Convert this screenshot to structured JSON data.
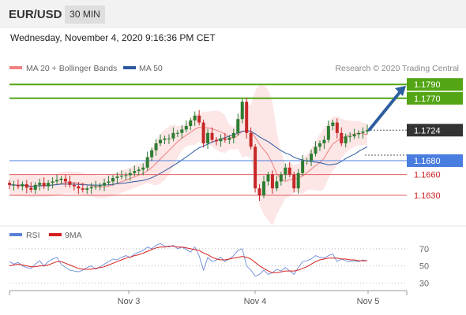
{
  "header": {
    "symbol": "EUR/USD",
    "timeframe": "30 MIN"
  },
  "timestamp": "Wednesday, November 4, 2020 9:16:36 PM CET",
  "copyright": "Research © 2020 Trading Central",
  "colors": {
    "resistance": "#53a515",
    "support_strong": "#4a7de0",
    "support": "#e06060",
    "candle_up": "#2e7d32",
    "candle_down": "#c62828",
    "ma20": "#f08080",
    "ma50": "#2d5aa0",
    "bollinger_fill": "#fde2e2",
    "arrow": "#2d5fa0",
    "rsi": "#5b7fd6",
    "rsi_ma": "#d62020"
  },
  "chart_data": [
    {
      "type": "candlestick",
      "title": "EUR/USD 30 MIN",
      "legend": [
        "MA 20 + Bollinger Bands",
        "MA 50"
      ],
      "x_ticks": [
        "Nov 3",
        "Nov 4",
        "Nov 5"
      ],
      "ylim": [
        1.158,
        1.1805
      ],
      "current_price": 1.1724,
      "levels": [
        {
          "label": "1.1790",
          "value": 1.179,
          "kind": "resistance"
        },
        {
          "label": "1.1770",
          "value": 1.177,
          "kind": "resistance"
        },
        {
          "label": "1.1680",
          "value": 1.168,
          "kind": "support_strong"
        },
        {
          "label": "1.1660",
          "value": 1.166,
          "kind": "support"
        },
        {
          "label": "1.1630",
          "value": 1.163,
          "kind": "support"
        }
      ],
      "current_label": "1.1724",
      "forecast_arrow": {
        "from": 1.1725,
        "to": 1.1788
      },
      "series": [
        {
          "name": "MA 20 + Bollinger Bands",
          "close_trend": [
            1.1645,
            1.1645,
            1.1643,
            1.1646,
            1.1641,
            1.1638,
            1.1645,
            1.1648,
            1.1643,
            1.1648,
            1.165,
            1.1652,
            1.1654,
            1.165,
            1.1645,
            1.1643,
            1.164,
            1.1638,
            1.164,
            1.1642,
            1.1643,
            1.1644,
            1.1648,
            1.165,
            1.1655,
            1.1657,
            1.1658,
            1.1659,
            1.1662,
            1.1665,
            1.1667,
            1.167,
            1.1685,
            1.1695,
            1.1705,
            1.171,
            1.1712,
            1.1712,
            1.172,
            1.172,
            1.1725,
            1.173,
            1.1738,
            1.1745,
            1.1735,
            1.1705,
            1.172,
            1.171,
            1.1708,
            1.1712,
            1.171,
            1.1713,
            1.172,
            1.174,
            1.1765,
            1.172,
            1.17,
            1.164,
            1.163,
            1.165,
            1.166,
            1.164,
            1.165,
            1.166,
            1.167,
            1.166,
            1.164,
            1.1662,
            1.168,
            1.168,
            1.169,
            1.17,
            1.1705,
            1.171,
            1.173,
            1.1735,
            1.172,
            1.1705,
            1.1715,
            1.1715,
            1.1718,
            1.172,
            1.1722,
            1.1724
          ]
        },
        {
          "name": "MA 50"
        }
      ]
    },
    {
      "type": "line",
      "title": "RSI",
      "legend": [
        "RSI",
        "9MA"
      ],
      "y_ticks": [
        "70",
        "50",
        "30"
      ],
      "ylim": [
        22,
        80
      ],
      "series": [
        {
          "name": "RSI",
          "values": [
            55,
            52,
            54,
            50,
            48,
            47,
            52,
            56,
            50,
            55,
            58,
            60,
            52,
            48,
            45,
            44,
            43,
            45,
            48,
            50,
            46,
            49,
            52,
            55,
            58,
            57,
            60,
            62,
            60,
            64,
            66,
            68,
            72,
            70,
            74,
            76,
            73,
            72,
            74,
            70,
            72,
            69,
            66,
            72,
            62,
            45,
            60,
            55,
            57,
            60,
            55,
            58,
            62,
            68,
            70,
            50,
            45,
            38,
            40,
            45,
            40,
            42,
            46,
            44,
            48,
            44,
            40,
            48,
            55,
            56,
            58,
            62,
            60,
            59,
            62,
            64,
            55,
            58,
            56,
            55,
            56,
            55,
            57,
            56
          ]
        },
        {
          "name": "9MA",
          "values": [
            50,
            51,
            52,
            51,
            50,
            49,
            49,
            50,
            50,
            51,
            53,
            55,
            55,
            53,
            51,
            49,
            47,
            46,
            46,
            46,
            47,
            48,
            49,
            51,
            53,
            55,
            57,
            59,
            60,
            62,
            63,
            65,
            67,
            69,
            71,
            72,
            72,
            73,
            73,
            72,
            72,
            71,
            70,
            69,
            68,
            65,
            63,
            60,
            58,
            57,
            57,
            58,
            59,
            60,
            61,
            60,
            58,
            54,
            50,
            47,
            44,
            42,
            42,
            43,
            44,
            44,
            44,
            45,
            47,
            49,
            52,
            55,
            57,
            58,
            59,
            59,
            59,
            58,
            58,
            57,
            57,
            56,
            56,
            56
          ]
        }
      ]
    }
  ]
}
